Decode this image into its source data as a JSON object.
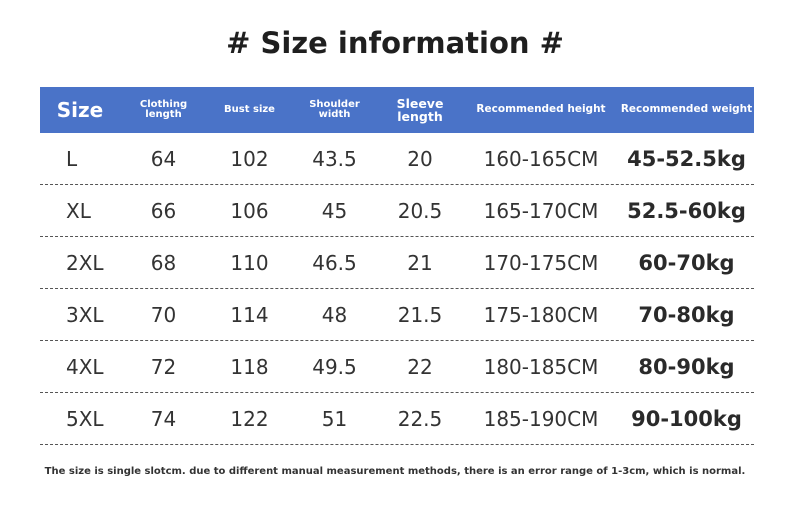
{
  "title": "# Size information #",
  "headers": {
    "size": "Size",
    "clothing_length": "Clothing length",
    "bust_size": "Bust size",
    "shoulder_width": "Shoulder width",
    "sleeve_length": "Sleeve length",
    "recommended_height": "Recommended height",
    "recommended_weight": "Recommended weight"
  },
  "rows": [
    {
      "size": "L",
      "clothing_length": "64",
      "bust": "102",
      "shoulder": "43.5",
      "sleeve": "20",
      "height": "160-165CM",
      "weight": "45-52.5kg"
    },
    {
      "size": "XL",
      "clothing_length": "66",
      "bust": "106",
      "shoulder": "45",
      "sleeve": "20.5",
      "height": "165-170CM",
      "weight": "52.5-60kg"
    },
    {
      "size": "2XL",
      "clothing_length": "68",
      "bust": "110",
      "shoulder": "46.5",
      "sleeve": "21",
      "height": "170-175CM",
      "weight": "60-70kg"
    },
    {
      "size": "3XL",
      "clothing_length": "70",
      "bust": "114",
      "shoulder": "48",
      "sleeve": "21.5",
      "height": "175-180CM",
      "weight": "70-80kg"
    },
    {
      "size": "4XL",
      "clothing_length": "72",
      "bust": "118",
      "shoulder": "49.5",
      "sleeve": "22",
      "height": "180-185CM",
      "weight": "80-90kg"
    },
    {
      "size": "5XL",
      "clothing_length": "74",
      "bust": "122",
      "shoulder": "51",
      "sleeve": "22.5",
      "height": "185-190CM",
      "weight": "90-100kg"
    }
  ],
  "note": "The size is single slotcm. due to different manual measurement methods, there is an error range of 1-3cm, which is normal.",
  "colors": {
    "header_bg": "#4a73c8",
    "header_text": "#ffffff"
  }
}
